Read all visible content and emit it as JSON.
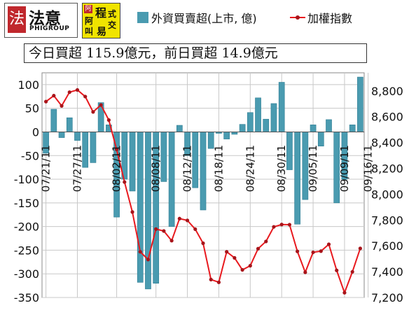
{
  "logos": {
    "brand1_seal": "法",
    "brand1_name": "法意",
    "brand1_sub": "PHIGROUP",
    "brand2_bubble": "阿",
    "brand2_chars": [
      "程",
      "式",
      "阿",
      "交",
      "叫",
      "易"
    ]
  },
  "headline": "今日買超 115.9億元，前日買超 14.9億元",
  "colors": {
    "bar": "#4a9bb0",
    "bar_stroke": "#2f7d93",
    "line": "#e8191e",
    "marker": "#a8141a",
    "plot_bg": "#ffffff",
    "grid": "#c8c8c8"
  },
  "chart_data": {
    "type": "bar",
    "title": "",
    "xlabel": "",
    "ylabel": "",
    "ylim": [
      -350,
      125
    ],
    "y2lim": [
      7200,
      8940
    ],
    "y_ticks": [
      100,
      50,
      0,
      -50,
      -100,
      -150,
      -200,
      -250,
      -300,
      -350
    ],
    "y2_ticks": [
      8800,
      8600,
      8400,
      8200,
      8000,
      7800,
      7600,
      7400,
      7200
    ],
    "y2_tick_labels": [
      "8,800",
      "8,600",
      "8,400",
      "8,200",
      "8,000",
      "7,800",
      "7,600",
      "7,400",
      "7,200"
    ],
    "grid": true,
    "legend_position": "top",
    "x_tick_labels": [
      {
        "index": 0,
        "label": "07/21/11"
      },
      {
        "index": 4,
        "label": "07/27/11"
      },
      {
        "index": 9,
        "label": "08/02/11"
      },
      {
        "index": 14,
        "label": "08/08/11"
      },
      {
        "index": 18,
        "label": "08/12/11"
      },
      {
        "index": 22,
        "label": "08/18/11"
      },
      {
        "index": 26,
        "label": "08/24/11"
      },
      {
        "index": 30,
        "label": "08/30/11"
      },
      {
        "index": 34,
        "label": "09/05/11"
      },
      {
        "index": 38,
        "label": "09/09/11"
      },
      {
        "index": 41,
        "label": "09/16/11"
      }
    ],
    "series": [
      {
        "name": "外資買賣超(上市, 億)",
        "type": "bar",
        "axis": "left",
        "values": [
          -45,
          48,
          -12,
          30,
          -18,
          -75,
          -65,
          62,
          15,
          -180,
          -100,
          -125,
          -318,
          -332,
          -320,
          -105,
          -200,
          14,
          -50,
          -118,
          -165,
          -35,
          -3,
          -15,
          -5,
          16,
          41,
          72,
          27,
          60,
          105,
          -80,
          -195,
          -143,
          15,
          -30,
          26,
          -150,
          -100,
          15,
          116
        ]
      },
      {
        "name": "加權指數",
        "type": "line",
        "axis": "right",
        "values": [
          8717,
          8763,
          8684,
          8790,
          8807,
          8756,
          8637,
          8691,
          8574,
          8346,
          8094,
          7862,
          7554,
          7494,
          7730,
          7715,
          7640,
          7811,
          7797,
          7729,
          7620,
          7339,
          7318,
          7554,
          7507,
          7414,
          7446,
          7578,
          7634,
          7747,
          7765,
          7764,
          7557,
          7395,
          7550,
          7559,
          7612,
          7410,
          7237,
          7399,
          7580
        ]
      }
    ]
  }
}
